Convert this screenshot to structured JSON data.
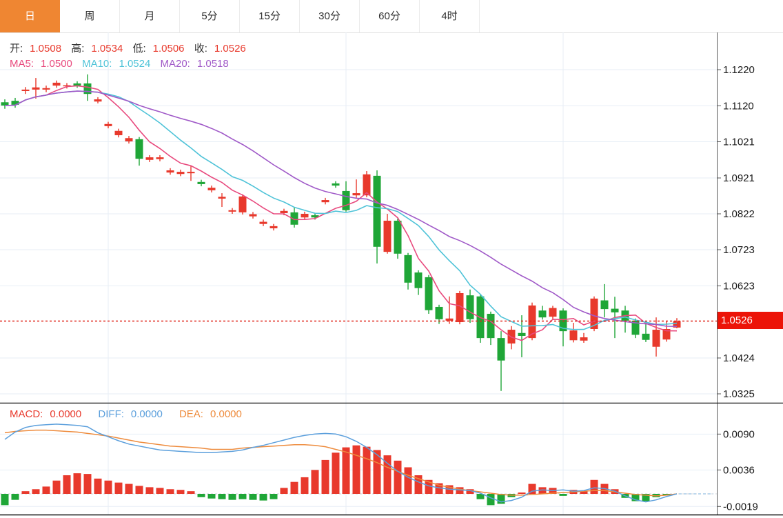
{
  "toolbar": {
    "tabs": [
      {
        "label": "日",
        "active": true
      },
      {
        "label": "周",
        "active": false
      },
      {
        "label": "月",
        "active": false
      },
      {
        "label": "5分",
        "active": false
      },
      {
        "label": "15分",
        "active": false
      },
      {
        "label": "30分",
        "active": false
      },
      {
        "label": "60分",
        "active": false
      },
      {
        "label": "4时",
        "active": false
      }
    ]
  },
  "legend": {
    "open_label": "开:",
    "open": "1.0508",
    "high_label": "高:",
    "high": "1.0534",
    "low_label": "低:",
    "low": "1.0506",
    "close_label": "收:",
    "close": "1.0526",
    "ma5_label": "MA5:",
    "ma5": "1.0500",
    "ma10_label": "MA10:",
    "ma10": "1.0524",
    "ma20_label": "MA20:",
    "ma20": "1.0518"
  },
  "macd_legend": {
    "macd_label": "MACD:",
    "macd": "0.0000",
    "diff_label": "DIFF:",
    "diff": "0.0000",
    "dea_label": "DEA:",
    "dea": "0.0000"
  },
  "price_axis": {
    "last_price_label": "1.0526"
  },
  "colors": {
    "up": "#e8392c",
    "down": "#1fa637",
    "ma5": "#e84a7e",
    "ma10": "#4fc3d8",
    "ma20": "#a05ac8",
    "diff": "#5b9fdc",
    "dea": "#ee8b3c",
    "badge": "#ec1408",
    "accent_tab": "#ef8632",
    "dotted_price_line": "#e02218",
    "grid": "#e7eef6",
    "axis_line": "#555555"
  },
  "chart_data": {
    "type": "candlestick+macd",
    "title": "Daily candlestick chart with MA5/MA10/MA20 overlays and MACD panel",
    "convention": "red = up candle, green = down candle (Chinese style)",
    "price_ticks": [
      1.122,
      1.112,
      1.1021,
      1.0921,
      1.0822,
      1.0723,
      1.0623,
      1.0424,
      1.0325
    ],
    "last_price": 1.0526,
    "candles_ohlc": [
      [
        1.113,
        1.1138,
        1.1112,
        1.1121
      ],
      [
        1.1134,
        1.1142,
        1.1115,
        1.1123
      ],
      [
        1.1161,
        1.1172,
        1.1153,
        1.1165
      ],
      [
        1.1165,
        1.1197,
        1.114,
        1.1171
      ],
      [
        1.1165,
        1.1176,
        1.1158,
        1.1169
      ],
      [
        1.1176,
        1.119,
        1.117,
        1.1184
      ],
      [
        1.1174,
        1.1183,
        1.1168,
        1.1177
      ],
      [
        1.1182,
        1.1188,
        1.117,
        1.1176
      ],
      [
        1.1182,
        1.1207,
        1.1134,
        1.1153
      ],
      [
        1.1132,
        1.1144,
        1.1127,
        1.1138
      ],
      [
        1.1064,
        1.1076,
        1.1058,
        1.107
      ],
      [
        1.1039,
        1.1057,
        1.1033,
        1.1051
      ],
      [
        1.1022,
        1.1037,
        1.1016,
        1.1031
      ],
      [
        1.1028,
        1.1034,
        1.0955,
        1.0974
      ],
      [
        1.0971,
        1.0984,
        1.0965,
        1.0978
      ],
      [
        1.0973,
        1.0984,
        1.0967,
        1.0978
      ],
      [
        1.0936,
        1.0948,
        1.093,
        1.0942
      ],
      [
        1.0932,
        1.0944,
        1.0926,
        1.0938
      ],
      [
        1.0934,
        1.0955,
        1.0913,
        1.0938
      ],
      [
        1.091,
        1.0916,
        1.0898,
        1.0904
      ],
      [
        1.0887,
        1.09,
        1.0881,
        1.0894
      ],
      [
        1.0864,
        1.0879,
        1.0841,
        1.0869
      ],
      [
        1.0828,
        1.0838,
        1.0822,
        1.0832
      ],
      [
        1.0826,
        1.0876,
        1.082,
        1.087
      ],
      [
        1.0815,
        1.0827,
        1.0809,
        1.0821
      ],
      [
        1.0794,
        1.0806,
        1.0788,
        1.08
      ],
      [
        1.0782,
        1.0794,
        1.0776,
        1.0788
      ],
      [
        1.0824,
        1.0836,
        1.0818,
        1.083
      ],
      [
        1.0826,
        1.0841,
        1.0784,
        1.0792
      ],
      [
        1.0812,
        1.0828,
        1.0806,
        1.0822
      ],
      [
        1.0818,
        1.0824,
        1.0806,
        1.0812
      ],
      [
        1.0854,
        1.0866,
        1.0848,
        1.086
      ],
      [
        1.0906,
        1.0912,
        1.0894,
        1.09
      ],
      [
        1.0885,
        1.0912,
        1.0828,
        1.0832
      ],
      [
        1.0873,
        1.0917,
        1.0866,
        1.0879
      ],
      [
        1.0873,
        1.094,
        1.0868,
        1.0931
      ],
      [
        1.0927,
        1.0942,
        1.0685,
        1.0731
      ],
      [
        1.0717,
        1.0822,
        1.0712,
        1.0803
      ],
      [
        1.0803,
        1.0809,
        1.0698,
        1.0712
      ],
      [
        1.0708,
        1.0714,
        1.0613,
        1.0632
      ],
      [
        1.066,
        1.0666,
        1.0598,
        1.0617
      ],
      [
        1.0647,
        1.0653,
        1.0546,
        1.0556
      ],
      [
        1.0565,
        1.0571,
        1.0518,
        1.0531
      ],
      [
        1.0527,
        1.0594,
        1.0518,
        1.0533
      ],
      [
        1.0523,
        1.0609,
        1.0517,
        1.0603
      ],
      [
        1.0597,
        1.0613,
        1.0521,
        1.0531
      ],
      [
        1.0594,
        1.06,
        1.0466,
        1.0479
      ],
      [
        1.0546,
        1.0552,
        1.046,
        1.0479
      ],
      [
        1.0479,
        1.0498,
        1.0333,
        1.0417
      ],
      [
        1.0464,
        1.0512,
        1.0448,
        1.0502
      ],
      [
        1.0493,
        1.0542,
        1.0426,
        1.0485
      ],
      [
        1.0479,
        1.0577,
        1.0473,
        1.0569
      ],
      [
        1.0555,
        1.0568,
        1.053,
        1.0536
      ],
      [
        1.0538,
        1.0568,
        1.0532,
        1.0562
      ],
      [
        1.0555,
        1.0561,
        1.0456,
        1.0498
      ],
      [
        1.0473,
        1.0521,
        1.0467,
        1.05
      ],
      [
        1.0472,
        1.0493,
        1.0466,
        1.0481
      ],
      [
        1.0504,
        1.0594,
        1.0498,
        1.0588
      ],
      [
        1.0583,
        1.0628,
        1.0536,
        1.0559
      ],
      [
        1.056,
        1.0593,
        1.0479,
        1.055
      ],
      [
        1.0555,
        1.0568,
        1.0494,
        1.0527
      ],
      [
        1.0527,
        1.0533,
        1.0479,
        1.0488
      ],
      [
        1.0491,
        1.0527,
        1.0468,
        1.0474
      ],
      [
        1.0455,
        1.0536,
        1.0428,
        1.0502
      ],
      [
        1.0475,
        1.0525,
        1.0469,
        1.0504
      ],
      [
        1.0508,
        1.0534,
        1.0506,
        1.0526
      ]
    ],
    "ma_periods": [
      5,
      10,
      20
    ],
    "macd": {
      "ticks": [
        0.009,
        0.0036,
        -0.0019
      ],
      "hist": [
        -0.0017,
        -0.0009,
        0.0004,
        0.0007,
        0.0011,
        0.002,
        0.0028,
        0.0031,
        0.003,
        0.0023,
        0.002,
        0.0017,
        0.0015,
        0.0012,
        0.001,
        0.0009,
        0.0007,
        0.0006,
        0.0004,
        -0.0005,
        -0.0007,
        -0.0008,
        -0.0009,
        -0.0008,
        -0.0009,
        -0.001,
        -0.0008,
        0.0009,
        0.0018,
        0.0025,
        0.0036,
        0.0051,
        0.0062,
        0.007,
        0.0073,
        0.0071,
        0.0066,
        0.0058,
        0.005,
        0.004,
        0.0028,
        0.0021,
        0.0016,
        0.0013,
        0.001,
        0.0007,
        -0.0008,
        -0.0017,
        -0.0015,
        -0.0005,
        0.0002,
        0.0015,
        0.001,
        0.0009,
        -0.0003,
        0.0006,
        0.0004,
        0.0021,
        0.0015,
        0.0007,
        -0.0006,
        -0.0011,
        -0.0011,
        -0.0005,
        -0.0001,
        0.0
      ],
      "diff": [
        0.0082,
        0.0093,
        0.01,
        0.0103,
        0.0104,
        0.0105,
        0.0104,
        0.0103,
        0.0101,
        0.0092,
        0.0086,
        0.008,
        0.0075,
        0.0072,
        0.0069,
        0.0066,
        0.0065,
        0.0064,
        0.0063,
        0.0062,
        0.0062,
        0.0063,
        0.0064,
        0.0066,
        0.007,
        0.0073,
        0.0077,
        0.0081,
        0.0085,
        0.0088,
        0.009,
        0.0091,
        0.009,
        0.0086,
        0.0079,
        0.007,
        0.0059,
        0.0046,
        0.0034,
        0.0025,
        0.0018,
        0.0012,
        0.0009,
        0.0007,
        0.0006,
        0.0005,
        0.0001,
        -0.0006,
        -0.0012,
        -0.001,
        -0.0005,
        0.0004,
        0.0006,
        0.0005,
        0.0006,
        0.0004,
        0.0005,
        0.0009,
        0.0008,
        0.0004,
        -0.0003,
        -0.0009,
        -0.0012,
        -0.0009,
        -0.0004,
        0.0
      ],
      "dea": [
        0.0092,
        0.0094,
        0.0095,
        0.0096,
        0.0096,
        0.0095,
        0.0094,
        0.0093,
        0.0091,
        0.0089,
        0.0087,
        0.0084,
        0.0081,
        0.0078,
        0.0076,
        0.0074,
        0.0072,
        0.0071,
        0.007,
        0.0069,
        0.0067,
        0.0067,
        0.0067,
        0.0069,
        0.007,
        0.0071,
        0.0072,
        0.0073,
        0.0074,
        0.0074,
        0.0073,
        0.0071,
        0.0067,
        0.0063,
        0.0058,
        0.0053,
        0.0047,
        0.004,
        0.0034,
        0.0028,
        0.0023,
        0.0018,
        0.0013,
        0.001,
        0.0007,
        0.0005,
        0.0003,
        0.0001,
        -0.0001,
        -0.0002,
        -0.0002,
        -0.0001,
        0.0,
        0.0001,
        0.0002,
        0.0003,
        0.0004,
        0.0005,
        0.0005,
        0.0003,
        0.0001,
        -0.0001,
        -0.0002,
        -0.0003,
        -0.0002,
        0.0
      ]
    }
  }
}
